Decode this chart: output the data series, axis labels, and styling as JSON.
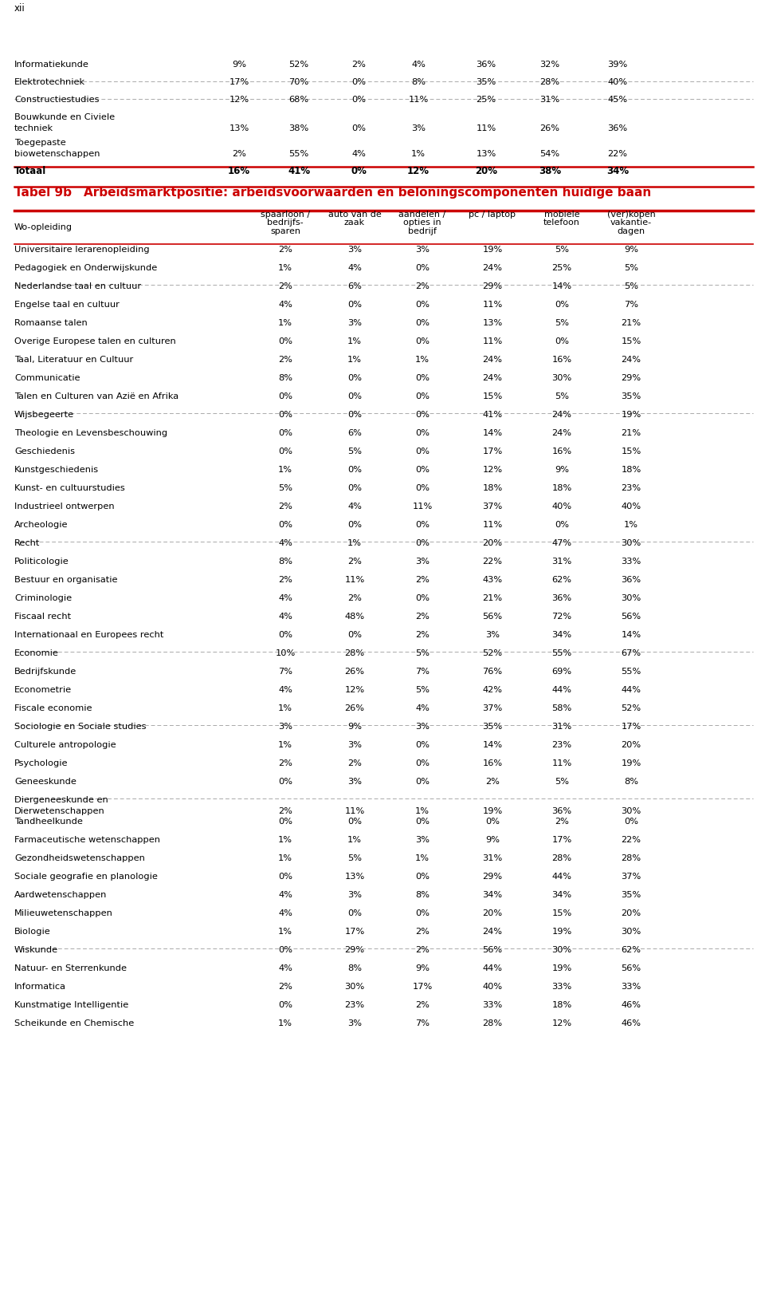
{
  "page_label": "xii",
  "title_label": "Tabel 9b",
  "title_text": "Arbeidsmarktpositie: arbeidsvoorwaarden en beloningscomponenten huidige baan",
  "col_header_main": "Wo-opleiding",
  "col_headers": [
    "spaarloon /\nbedrijfs-\nsparen",
    "auto van de\nzaak",
    "aandelen /\nopties in\nbedrijf",
    "pc / laptop",
    "mobiele\ntelefoon",
    "(ver)kopen\nvakantie-\ndagen"
  ],
  "top_rows": [
    [
      "Informatiekunde",
      "9%",
      "52%",
      "2%",
      "4%",
      "36%",
      "32%",
      "39%"
    ],
    [
      "Elektrotechniek",
      "17%",
      "70%",
      "0%",
      "8%",
      "35%",
      "28%",
      "40%"
    ],
    [
      "Constructiestudies",
      "12%",
      "68%",
      "0%",
      "11%",
      "25%",
      "31%",
      "45%"
    ],
    [
      "Bouwkunde en Civiele\ntechniek",
      "13%",
      "38%",
      "0%",
      "3%",
      "11%",
      "26%",
      "36%"
    ],
    [
      "Toegepaste\nbiowetenschappen",
      "2%",
      "55%",
      "4%",
      "1%",
      "13%",
      "54%",
      "22%"
    ]
  ],
  "totaal_row": [
    "Totaal",
    "16%",
    "41%",
    "0%",
    "12%",
    "20%",
    "38%",
    "34%"
  ],
  "main_rows": [
    [
      "Universitaire lerarenopleiding",
      "2%",
      "3%",
      "3%",
      "19%",
      "5%",
      "9%"
    ],
    [
      "Pedagogiek en Onderwijskunde",
      "1%",
      "4%",
      "0%",
      "24%",
      "25%",
      "5%"
    ],
    [
      "Nederlandse taal en cultuur",
      "2%",
      "6%",
      "2%",
      "29%",
      "14%",
      "5%"
    ],
    [
      "Engelse taal en cultuur",
      "4%",
      "0%",
      "0%",
      "11%",
      "0%",
      "7%"
    ],
    [
      "Romaanse talen",
      "1%",
      "3%",
      "0%",
      "13%",
      "5%",
      "21%"
    ],
    [
      "Overige Europese talen en culturen",
      "0%",
      "1%",
      "0%",
      "11%",
      "0%",
      "15%"
    ],
    [
      "Taal, Literatuur en Cultuur",
      "2%",
      "1%",
      "1%",
      "24%",
      "16%",
      "24%"
    ],
    [
      "Communicatie",
      "8%",
      "0%",
      "0%",
      "24%",
      "30%",
      "29%"
    ],
    [
      "Talen en Culturen van Azië en Afrika",
      "0%",
      "0%",
      "0%",
      "15%",
      "5%",
      "35%"
    ],
    [
      "Wijsbegeerte",
      "0%",
      "0%",
      "0%",
      "41%",
      "24%",
      "19%"
    ],
    [
      "Theologie en Levensbeschouwing",
      "0%",
      "6%",
      "0%",
      "14%",
      "24%",
      "21%"
    ],
    [
      "Geschiedenis",
      "0%",
      "5%",
      "0%",
      "17%",
      "16%",
      "15%"
    ],
    [
      "Kunstgeschiedenis",
      "1%",
      "0%",
      "0%",
      "12%",
      "9%",
      "18%"
    ],
    [
      "Kunst- en cultuurstudies",
      "5%",
      "0%",
      "0%",
      "18%",
      "18%",
      "23%"
    ],
    [
      "Industrieel ontwerpen",
      "2%",
      "4%",
      "11%",
      "37%",
      "40%",
      "40%"
    ],
    [
      "Archeologie",
      "0%",
      "0%",
      "0%",
      "11%",
      "0%",
      "1%"
    ],
    [
      "Recht",
      "4%",
      "1%",
      "0%",
      "20%",
      "47%",
      "30%"
    ],
    [
      "Politicologie",
      "8%",
      "2%",
      "3%",
      "22%",
      "31%",
      "33%"
    ],
    [
      "Bestuur en organisatie",
      "2%",
      "11%",
      "2%",
      "43%",
      "62%",
      "36%"
    ],
    [
      "Criminologie",
      "4%",
      "2%",
      "0%",
      "21%",
      "36%",
      "30%"
    ],
    [
      "Fiscaal recht",
      "4%",
      "48%",
      "2%",
      "56%",
      "72%",
      "56%"
    ],
    [
      "Internationaal en Europees recht",
      "0%",
      "0%",
      "2%",
      "3%",
      "34%",
      "14%"
    ],
    [
      "Economie",
      "10%",
      "28%",
      "5%",
      "52%",
      "55%",
      "67%"
    ],
    [
      "Bedrijfskunde",
      "7%",
      "26%",
      "7%",
      "76%",
      "69%",
      "55%"
    ],
    [
      "Econometrie",
      "4%",
      "12%",
      "5%",
      "42%",
      "44%",
      "44%"
    ],
    [
      "Fiscale economie",
      "1%",
      "26%",
      "4%",
      "37%",
      "58%",
      "52%"
    ],
    [
      "Sociologie en Sociale studies",
      "3%",
      "9%",
      "3%",
      "35%",
      "31%",
      "17%"
    ],
    [
      "Culturele antropologie",
      "1%",
      "3%",
      "0%",
      "14%",
      "23%",
      "20%"
    ],
    [
      "Psychologie",
      "2%",
      "2%",
      "0%",
      "16%",
      "11%",
      "19%"
    ],
    [
      "Geneeskunde",
      "0%",
      "3%",
      "0%",
      "2%",
      "5%",
      "8%"
    ],
    [
      "Diergeneeskunde en\nDierwetenschappen",
      "2%",
      "11%",
      "1%",
      "19%",
      "36%",
      "30%"
    ],
    [
      "Tandheelkunde",
      "0%",
      "0%",
      "0%",
      "0%",
      "2%",
      "0%"
    ],
    [
      "Farmaceutische wetenschappen",
      "1%",
      "1%",
      "3%",
      "9%",
      "17%",
      "22%"
    ],
    [
      "Gezondheidswetenschappen",
      "1%",
      "5%",
      "1%",
      "31%",
      "28%",
      "28%"
    ],
    [
      "Sociale geografie en planologie",
      "0%",
      "13%",
      "0%",
      "29%",
      "44%",
      "37%"
    ],
    [
      "Aardwetenschappen",
      "4%",
      "3%",
      "8%",
      "34%",
      "34%",
      "35%"
    ],
    [
      "Milieuwetenschappen",
      "4%",
      "0%",
      "0%",
      "20%",
      "15%",
      "20%"
    ],
    [
      "Biologie",
      "1%",
      "17%",
      "2%",
      "24%",
      "19%",
      "30%"
    ],
    [
      "Wiskunde",
      "0%",
      "29%",
      "2%",
      "56%",
      "30%",
      "62%"
    ],
    [
      "Natuur- en Sterrenkunde",
      "4%",
      "8%",
      "9%",
      "44%",
      "19%",
      "56%"
    ],
    [
      "Informatica",
      "2%",
      "30%",
      "17%",
      "40%",
      "33%",
      "33%"
    ],
    [
      "Kunstmatige Intelligentie",
      "0%",
      "23%",
      "2%",
      "33%",
      "18%",
      "46%"
    ],
    [
      "Scheikunde en Chemische",
      "1%",
      "3%",
      "7%",
      "28%",
      "12%",
      "46%"
    ]
  ],
  "group_separators_after": [
    1,
    8,
    15,
    21,
    25,
    29,
    37
  ],
  "background_color": "#ffffff",
  "title_color": "#cc0000",
  "dashed_color": "#aaaaaa",
  "solid_color": "#cc0000"
}
